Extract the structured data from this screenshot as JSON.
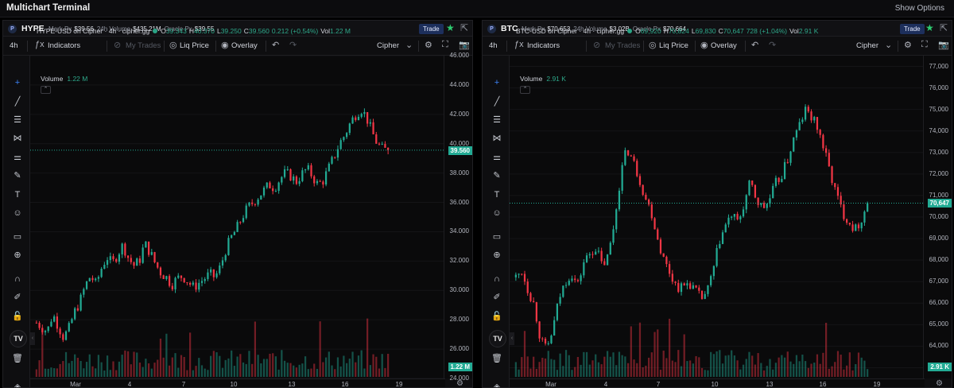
{
  "app": {
    "title": "Multichart Terminal",
    "show_options": "Show Options"
  },
  "panels": [
    {
      "ticker": "HYPE",
      "mark_px_label": "Mark Px",
      "mark_px": "$39.56",
      "vol_label": "24h Volume",
      "vol": "$435.21M",
      "oracle_label": "Oracle Px",
      "oracle": "$39.55",
      "trade_label": "Trade",
      "interval": "4h",
      "indicators_label": "Indicators",
      "my_trades_label": "My Trades",
      "liq_price_label": "Liq Price",
      "overlay_label": "Overlay",
      "source_label": "Cipher",
      "legend": {
        "title": "HYPE-USD on Cipher · 4h · cipher.gg",
        "o": "39.343",
        "h": "40.370",
        "l": "39.250",
        "c": "39.560",
        "change": "0.212 (+0.54%)",
        "vol": "1.22 M"
      },
      "volume_label": "Volume",
      "volume_value": "1.22 M",
      "last_price": "39.560",
      "last_volume": "1.22 M",
      "y_ticks": [
        "46.000",
        "44.000",
        "42.000",
        "40.000",
        "38.000",
        "36.000",
        "34.000",
        "32.000",
        "30.000",
        "28.000",
        "26.000",
        "24.000"
      ],
      "x_ticks": [
        "Mar",
        "4",
        "7",
        "10",
        "13",
        "16",
        "19"
      ]
    },
    {
      "ticker": "BTC",
      "mark_px_label": "Mark Px",
      "mark_px": "$70,653",
      "vol_label": "24h Volume",
      "vol": "$3.02B",
      "oracle_label": "Oracle Px",
      "oracle": "$70,664",
      "trade_label": "Trade",
      "interval": "4h",
      "indicators_label": "Indicators",
      "my_trades_label": "My Trades",
      "liq_price_label": "Liq Price",
      "overlay_label": "Overlay",
      "source_label": "Cipher",
      "legend": {
        "title": "BTC-USD on Cipher · 4h · cipher.gg",
        "o": "69,920",
        "h": "70,824",
        "l": "69,830",
        "c": "70,647",
        "change": "728 (+1.04%)",
        "vol": "2.91 K"
      },
      "volume_label": "Volume",
      "volume_value": "2.91 K",
      "last_price": "70,647",
      "last_volume": "2.91 K",
      "y_ticks": [
        "77,000",
        "76,000",
        "75,000",
        "74,000",
        "73,000",
        "72,000",
        "71,000",
        "70,000",
        "69,000",
        "68,000",
        "67,000",
        "66,000",
        "65,000",
        "64,000",
        "63,000"
      ],
      "x_ticks": [
        "Mar",
        "4",
        "7",
        "10",
        "13",
        "16",
        "19"
      ]
    }
  ],
  "chart_data": [
    {
      "type": "candlestick",
      "title": "HYPE-USD on Cipher · 4h · cipher.gg",
      "ylim": [
        24,
        46
      ],
      "x_categories": [
        "Mar",
        "4",
        "7",
        "10",
        "13",
        "16",
        "19"
      ],
      "close_path": [
        27.8,
        27.5,
        27.2,
        28.4,
        27.6,
        26.8,
        27.4,
        28.5,
        29.2,
        30.3,
        31.0,
        30.4,
        31.5,
        32.3,
        31.8,
        32.5,
        33.1,
        32.2,
        31.7,
        32.0,
        33.2,
        32.6,
        31.8,
        31.2,
        30.9,
        30.4,
        30.8,
        31.0,
        30.6,
        30.2,
        30.5,
        30.8,
        31.1,
        30.9,
        31.6,
        32.8,
        33.6,
        34.2,
        35.0,
        35.6,
        36.0,
        36.4,
        36.8,
        37.2,
        37.0,
        37.6,
        38.0,
        37.8,
        37.4,
        37.9,
        38.3,
        37.8,
        37.2,
        37.5,
        38.3,
        39.1,
        40.0,
        40.6,
        41.4,
        42.0,
        42.4,
        41.8,
        40.8,
        40.0,
        39.6,
        39.56
      ],
      "volume_note": "volume bars below price"
    },
    {
      "type": "candlestick",
      "title": "BTC-USD on Cipher · 4h · cipher.gg",
      "ylim": [
        62500,
        77500
      ],
      "x_categories": [
        "Mar",
        "4",
        "7",
        "10",
        "13",
        "16",
        "19"
      ],
      "close_path": [
        67200,
        67500,
        66600,
        65900,
        64300,
        63800,
        64800,
        66200,
        67000,
        67400,
        66800,
        67900,
        68300,
        68600,
        67700,
        68200,
        69800,
        72000,
        73200,
        72600,
        71800,
        70900,
        70200,
        69000,
        68000,
        67400,
        66800,
        66700,
        67000,
        66600,
        66200,
        66500,
        67500,
        68900,
        69600,
        70100,
        69700,
        70600,
        71600,
        70800,
        70400,
        70700,
        71500,
        71900,
        72600,
        73600,
        74300,
        75000,
        74600,
        74100,
        73100,
        72000,
        71000,
        70200,
        69800,
        69400,
        69900,
        70647
      ],
      "volume_note": "volume bars below price"
    }
  ]
}
